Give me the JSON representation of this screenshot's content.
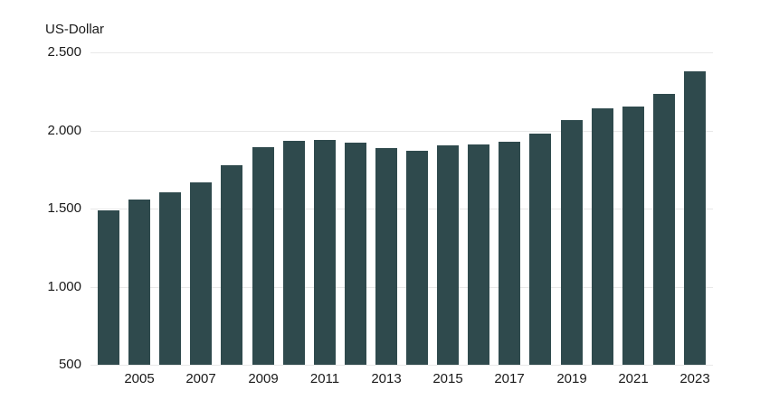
{
  "chart_data": {
    "type": "bar",
    "title": "US-Dollar",
    "unit": "US-Dollar",
    "categories": [
      "2004",
      "2005",
      "2006",
      "2007",
      "2008",
      "2009",
      "2010",
      "2011",
      "2012",
      "2013",
      "2014",
      "2015",
      "2016",
      "2017",
      "2018",
      "2019",
      "2020",
      "2021",
      "2022",
      "2023"
    ],
    "values": [
      1490,
      1560,
      1605,
      1670,
      1775,
      1895,
      1935,
      1940,
      1920,
      1885,
      1870,
      1905,
      1910,
      1925,
      1980,
      2065,
      2140,
      2155,
      2235,
      2380
    ],
    "x_tick_labels": [
      "2005",
      "2007",
      "2009",
      "2011",
      "2013",
      "2015",
      "2017",
      "2019",
      "2021",
      "2023"
    ],
    "y_ticks": [
      500,
      1000,
      1500,
      2000,
      2500
    ],
    "y_tick_labels": [
      "500",
      "1.000",
      "1.500",
      "2.000",
      "2.500"
    ],
    "ylim": [
      500,
      2500
    ],
    "grid": "horizontal",
    "legend_position": "none",
    "bar_color": "#2f4a4d",
    "grid_color": "#e8e8e8",
    "text_color": "#1a1a1a",
    "background_color": "#ffffff"
  }
}
